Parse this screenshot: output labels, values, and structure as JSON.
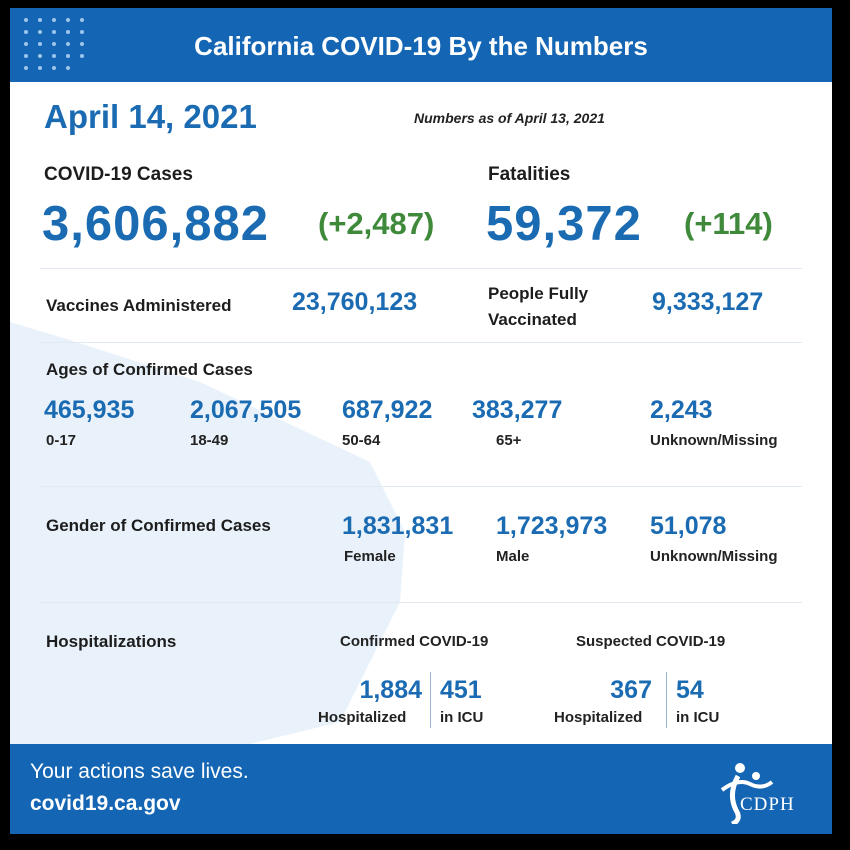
{
  "header": {
    "title": "California COVID-19 By the Numbers"
  },
  "date": "April 14, 2021",
  "as_of": "Numbers as of April 13, 2021",
  "cases": {
    "label": "COVID-19 Cases",
    "value": "3,606,882",
    "change": "(+2,487)"
  },
  "fatalities": {
    "label": "Fatalities",
    "value": "59,372",
    "change": "(+114)"
  },
  "vaccines": {
    "administered_label": "Vaccines Administered",
    "administered_value": "23,760,123",
    "fully_label_1": "People Fully",
    "fully_label_2": "Vaccinated",
    "fully_value": "9,333,127"
  },
  "ages": {
    "label": "Ages of Confirmed Cases",
    "groups": [
      {
        "value": "465,935",
        "label": "0-17"
      },
      {
        "value": "2,067,505",
        "label": "18-49"
      },
      {
        "value": "687,922",
        "label": "50-64"
      },
      {
        "value": "383,277",
        "label": "65+"
      },
      {
        "value": "2,243",
        "label": "Unknown/Missing"
      }
    ]
  },
  "gender": {
    "label": "Gender of Confirmed Cases",
    "groups": [
      {
        "value": "1,831,831",
        "label": "Female"
      },
      {
        "value": "1,723,973",
        "label": "Male"
      },
      {
        "value": "51,078",
        "label": "Unknown/Missing"
      }
    ]
  },
  "hospitalizations": {
    "label": "Hospitalizations",
    "confirmed": {
      "title": "Confirmed COVID-19",
      "hosp_value": "1,884",
      "hosp_label": "Hospitalized",
      "icu_value": "451",
      "icu_label": "in ICU"
    },
    "suspected": {
      "title": "Suspected COVID-19",
      "hosp_value": "367",
      "hosp_label": "Hospitalized",
      "icu_value": "54",
      "icu_label": "in ICU"
    }
  },
  "footer": {
    "tagline": "Your actions save lives.",
    "url": "covid19.ca.gov",
    "logo_text": "CDPH"
  },
  "colors": {
    "brand_blue": "#1466b4",
    "number_blue": "#1b6bb3",
    "change_green": "#3f8a3a"
  }
}
